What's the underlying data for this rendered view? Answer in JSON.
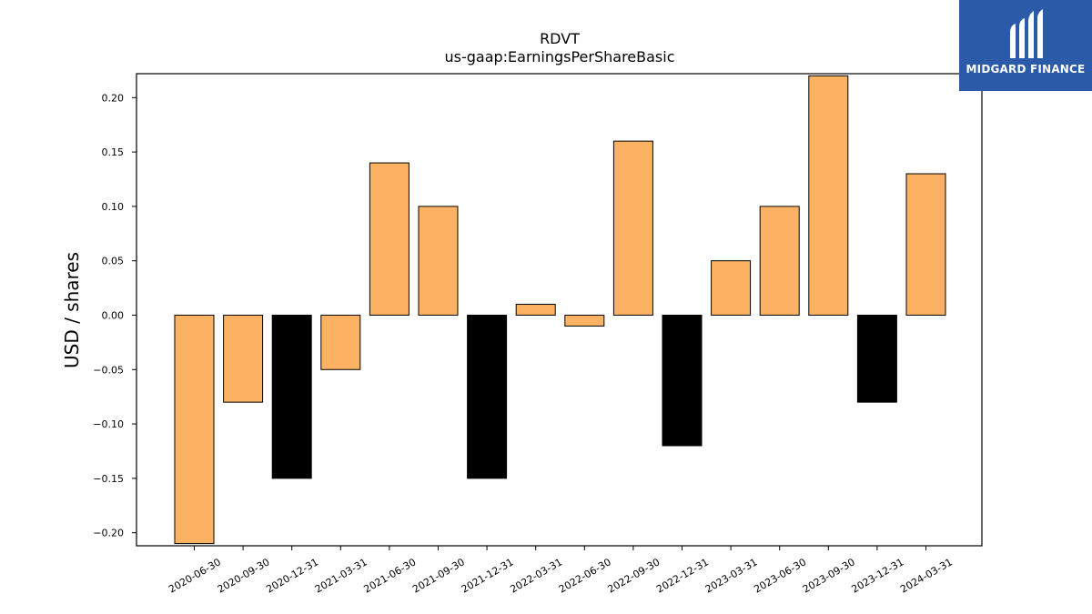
{
  "chart_data": {
    "type": "bar",
    "title": "RDVT",
    "subtitle": "us-gaap:EarningsPerShareBasic",
    "xlabel": "",
    "ylabel": "USD / shares",
    "categories": [
      "2020-06-30",
      "2020-09-30",
      "2020-12-31",
      "2021-03-31",
      "2021-06-30",
      "2021-09-30",
      "2021-12-31",
      "2022-03-31",
      "2022-06-30",
      "2022-09-30",
      "2022-12-31",
      "2023-03-31",
      "2023-06-30",
      "2023-09-30",
      "2023-12-31",
      "2024-03-31"
    ],
    "values": [
      -0.21,
      -0.08,
      -0.15,
      -0.05,
      0.14,
      0.1,
      -0.15,
      0.01,
      -0.01,
      0.16,
      -0.12,
      0.05,
      0.1,
      0.22,
      -0.08,
      0.13
    ],
    "bar_fill": [
      "orange",
      "orange",
      "black",
      "orange",
      "orange",
      "orange",
      "black",
      "orange",
      "orange",
      "orange",
      "black",
      "orange",
      "orange",
      "orange",
      "black",
      "orange"
    ],
    "colors": {
      "orange": "#fbb363",
      "black": "#000000"
    },
    "ylim": [
      -0.212,
      0.222
    ],
    "yticks": [
      -0.2,
      -0.15,
      -0.1,
      -0.05,
      0.0,
      0.05,
      0.1,
      0.15,
      0.2
    ],
    "ytick_labels": [
      "−0.20",
      "−0.15",
      "−0.10",
      "−0.05",
      "0.00",
      "0.05",
      "0.10",
      "0.15",
      "0.20"
    ],
    "grid": false,
    "legend": "none"
  },
  "logo": {
    "text": "MIDGARD FINANCE",
    "icon": "midgard-logo-icon",
    "background": "#2b5aa8"
  }
}
